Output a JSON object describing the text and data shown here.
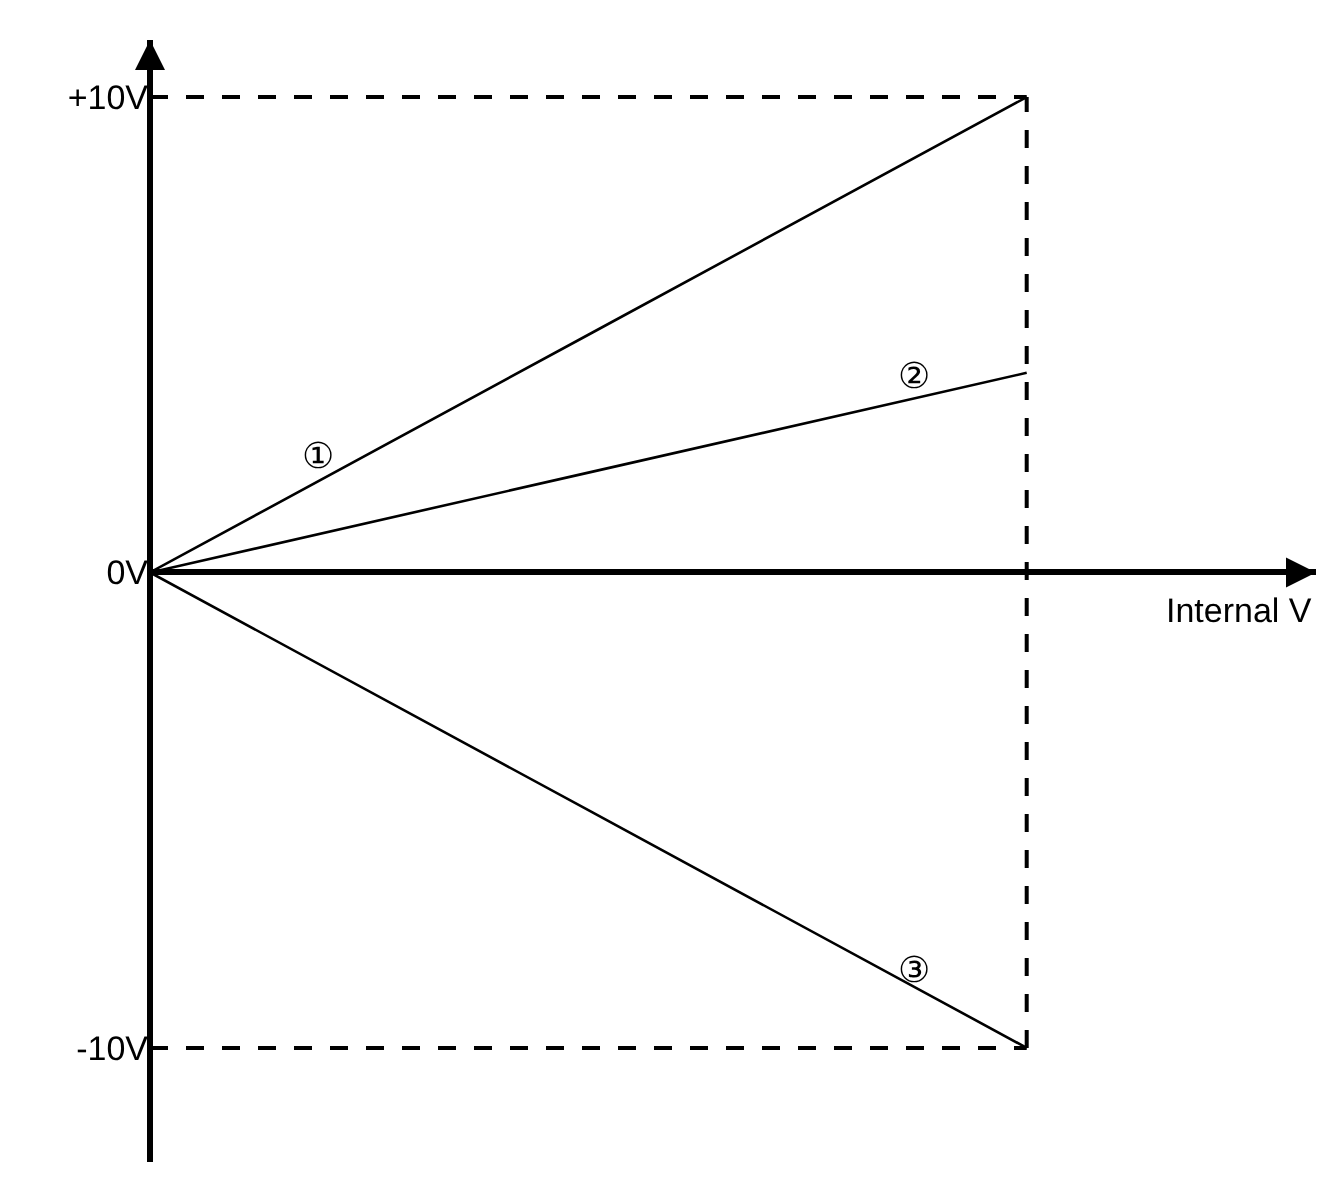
{
  "chart_data": {
    "type": "line",
    "categories": [
      null,
      null,
      null
    ],
    "xlabel": "Internal V",
    "series": [
      {
        "name": "①",
        "color": "#000000",
        "values": [
          0,
          5,
          10
        ]
      },
      {
        "name": "②",
        "color": "#000000",
        "values": [
          0,
          2.1,
          4.2
        ]
      },
      {
        "name": "③",
        "color": "#000000",
        "values": [
          0,
          -5,
          -10
        ]
      }
    ],
    "ylim": [
      -12.4,
      11.2
    ],
    "yticks": [
      {
        "value": 10,
        "label": "+10V"
      },
      {
        "value": 0,
        "label": "0V"
      },
      {
        "value": -10,
        "label": "-10V"
      }
    ],
    "ref_lines": [
      {
        "axis": "y",
        "value": 10,
        "line_style": "dashed",
        "color": "#000000"
      },
      {
        "axis": "y",
        "value": -10,
        "line_style": "dashed",
        "color": "#000000"
      },
      {
        "axis": "x",
        "line_style": "dashed",
        "color": "#000000"
      }
    ],
    "tick_labels": "y",
    "grid": false,
    "legend": false,
    "marker": "none",
    "line_style": "solid"
  }
}
